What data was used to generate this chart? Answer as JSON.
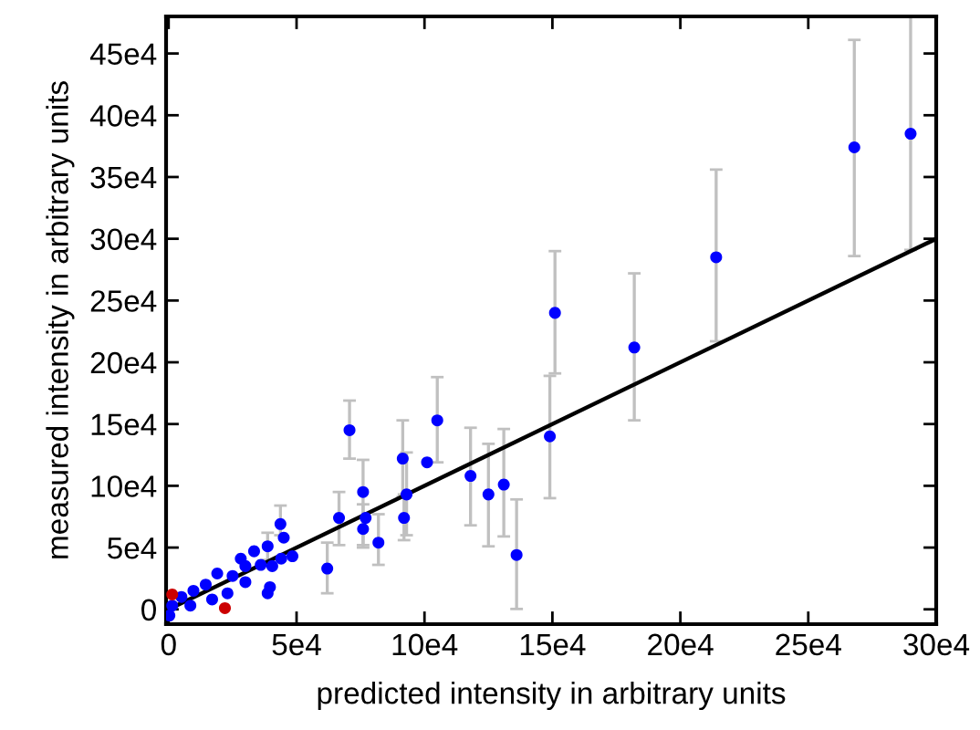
{
  "chart_data": {
    "type": "scatter",
    "xlabel": "predicted intensity in arbitrary units",
    "ylabel": "measured intensity in arbitrary units",
    "xlim": [
      -1000,
      300000
    ],
    "ylim": [
      -12000,
      480000
    ],
    "xticks": [
      {
        "value": 0,
        "label": "0"
      },
      {
        "value": 50000,
        "label": "5e4"
      },
      {
        "value": 100000,
        "label": "10e4"
      },
      {
        "value": 150000,
        "label": "15e4"
      },
      {
        "value": 200000,
        "label": "20e4"
      },
      {
        "value": 250000,
        "label": "25e4"
      },
      {
        "value": 300000,
        "label": "30e4"
      }
    ],
    "yticks": [
      {
        "value": 0,
        "label": "0"
      },
      {
        "value": 50000,
        "label": "5e4"
      },
      {
        "value": 100000,
        "label": "10e4"
      },
      {
        "value": 150000,
        "label": "15e4"
      },
      {
        "value": 200000,
        "label": "20e4"
      },
      {
        "value": 250000,
        "label": "25e4"
      },
      {
        "value": 300000,
        "label": "30e4"
      },
      {
        "value": 350000,
        "label": "35e4"
      },
      {
        "value": 400000,
        "label": "40e4"
      },
      {
        "value": 450000,
        "label": "45e4"
      }
    ],
    "grid": false,
    "legend": false,
    "marker": "circle",
    "series": [
      {
        "color": "#0000ff",
        "x": [
          136000,
          149000,
          151000,
          182000,
          214000,
          268000,
          290000,
          70700,
          105000,
          91500,
          101000,
          76000,
          93000,
          118000,
          125000,
          131000,
          66600,
          77000,
          76000,
          92000,
          82000,
          62000,
          43700,
          45000,
          38700,
          33400,
          28200,
          48400,
          44000,
          40500,
          36000,
          30000,
          39600,
          38700,
          30000,
          25000,
          19000,
          14500,
          9700,
          5000,
          1400,
          23000,
          17000,
          8500,
          300
        ],
        "values": [
          44000,
          140000,
          240000,
          212000,
          285000,
          374000,
          385000,
          145000,
          153000,
          122000,
          119000,
          95000,
          93000,
          108000,
          93000,
          101000,
          74000,
          74000,
          65000,
          74000,
          54000,
          33000,
          69000,
          58000,
          51000,
          47000,
          41000,
          43000,
          41000,
          35000,
          36000,
          35000,
          18000,
          13000,
          22000,
          27000,
          29000,
          20000,
          15000,
          10000,
          3000,
          13000,
          8000,
          3000,
          -5000
        ],
        "errors": [
          [
            300,
            89000
          ],
          [
            90000,
            189000
          ],
          [
            191000,
            290000
          ],
          [
            153000,
            272000
          ],
          [
            217000,
            356000
          ],
          [
            286000,
            461000
          ],
          [
            291000,
            480000
          ],
          [
            122000,
            169000
          ],
          [
            119000,
            188000
          ],
          [
            91000,
            153000
          ],
          null,
          [
            52000,
            121000
          ],
          [
            60000,
            127000
          ],
          [
            68000,
            147000
          ],
          [
            51000,
            134000
          ],
          [
            59000,
            146000
          ],
          [
            52000,
            95000
          ],
          null,
          [
            50000,
            85000
          ],
          [
            56000,
            93000
          ],
          [
            36000,
            77000
          ],
          [
            13000,
            54000
          ],
          [
            60000,
            84000
          ],
          null,
          [
            40000,
            62000
          ],
          null,
          null,
          null,
          null,
          null,
          null,
          null,
          null,
          null,
          null,
          null,
          null,
          null,
          null,
          null,
          null,
          null,
          null,
          null,
          null
        ]
      },
      {
        "color": "#cc0000",
        "x": [
          1400,
          22000
        ],
        "values": [
          12000,
          1000
        ]
      },
      {
        "type": "line",
        "color": "#000000",
        "x": [
          0,
          300000
        ],
        "values": [
          0,
          300000
        ],
        "line_style": "solid",
        "marker": "none"
      }
    ]
  }
}
